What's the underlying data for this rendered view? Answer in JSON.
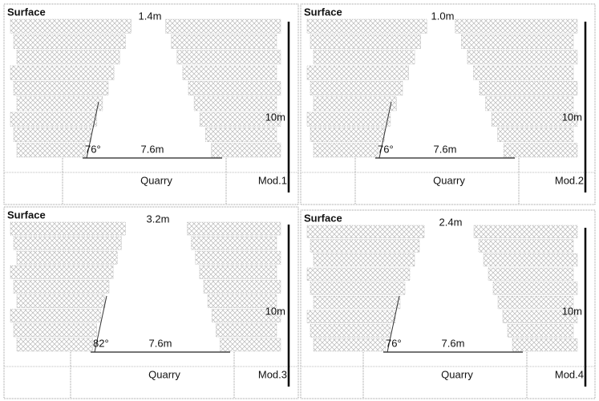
{
  "panels": [
    {
      "surface": "Surface",
      "top_width": "1.4m",
      "angle": "76°",
      "base_width": "7.6m",
      "height": "10m",
      "quarry": "Quarry",
      "model": "Mod.1"
    },
    {
      "surface": "Surface",
      "top_width": "1.0m",
      "angle": "76°",
      "base_width": "7.6m",
      "height": "10m",
      "quarry": "Quarry",
      "model": "Mod.2"
    },
    {
      "surface": "Surface",
      "top_width": "3.2m",
      "angle": "82°",
      "base_width": "7.6m",
      "height": "10m",
      "quarry": "Quarry",
      "model": "Mod.3"
    },
    {
      "surface": "Surface",
      "top_width": "2.4m",
      "angle": "76°",
      "base_width": "7.6m",
      "height": "10m",
      "quarry": "Quarry",
      "model": "Mod.4"
    }
  ]
}
